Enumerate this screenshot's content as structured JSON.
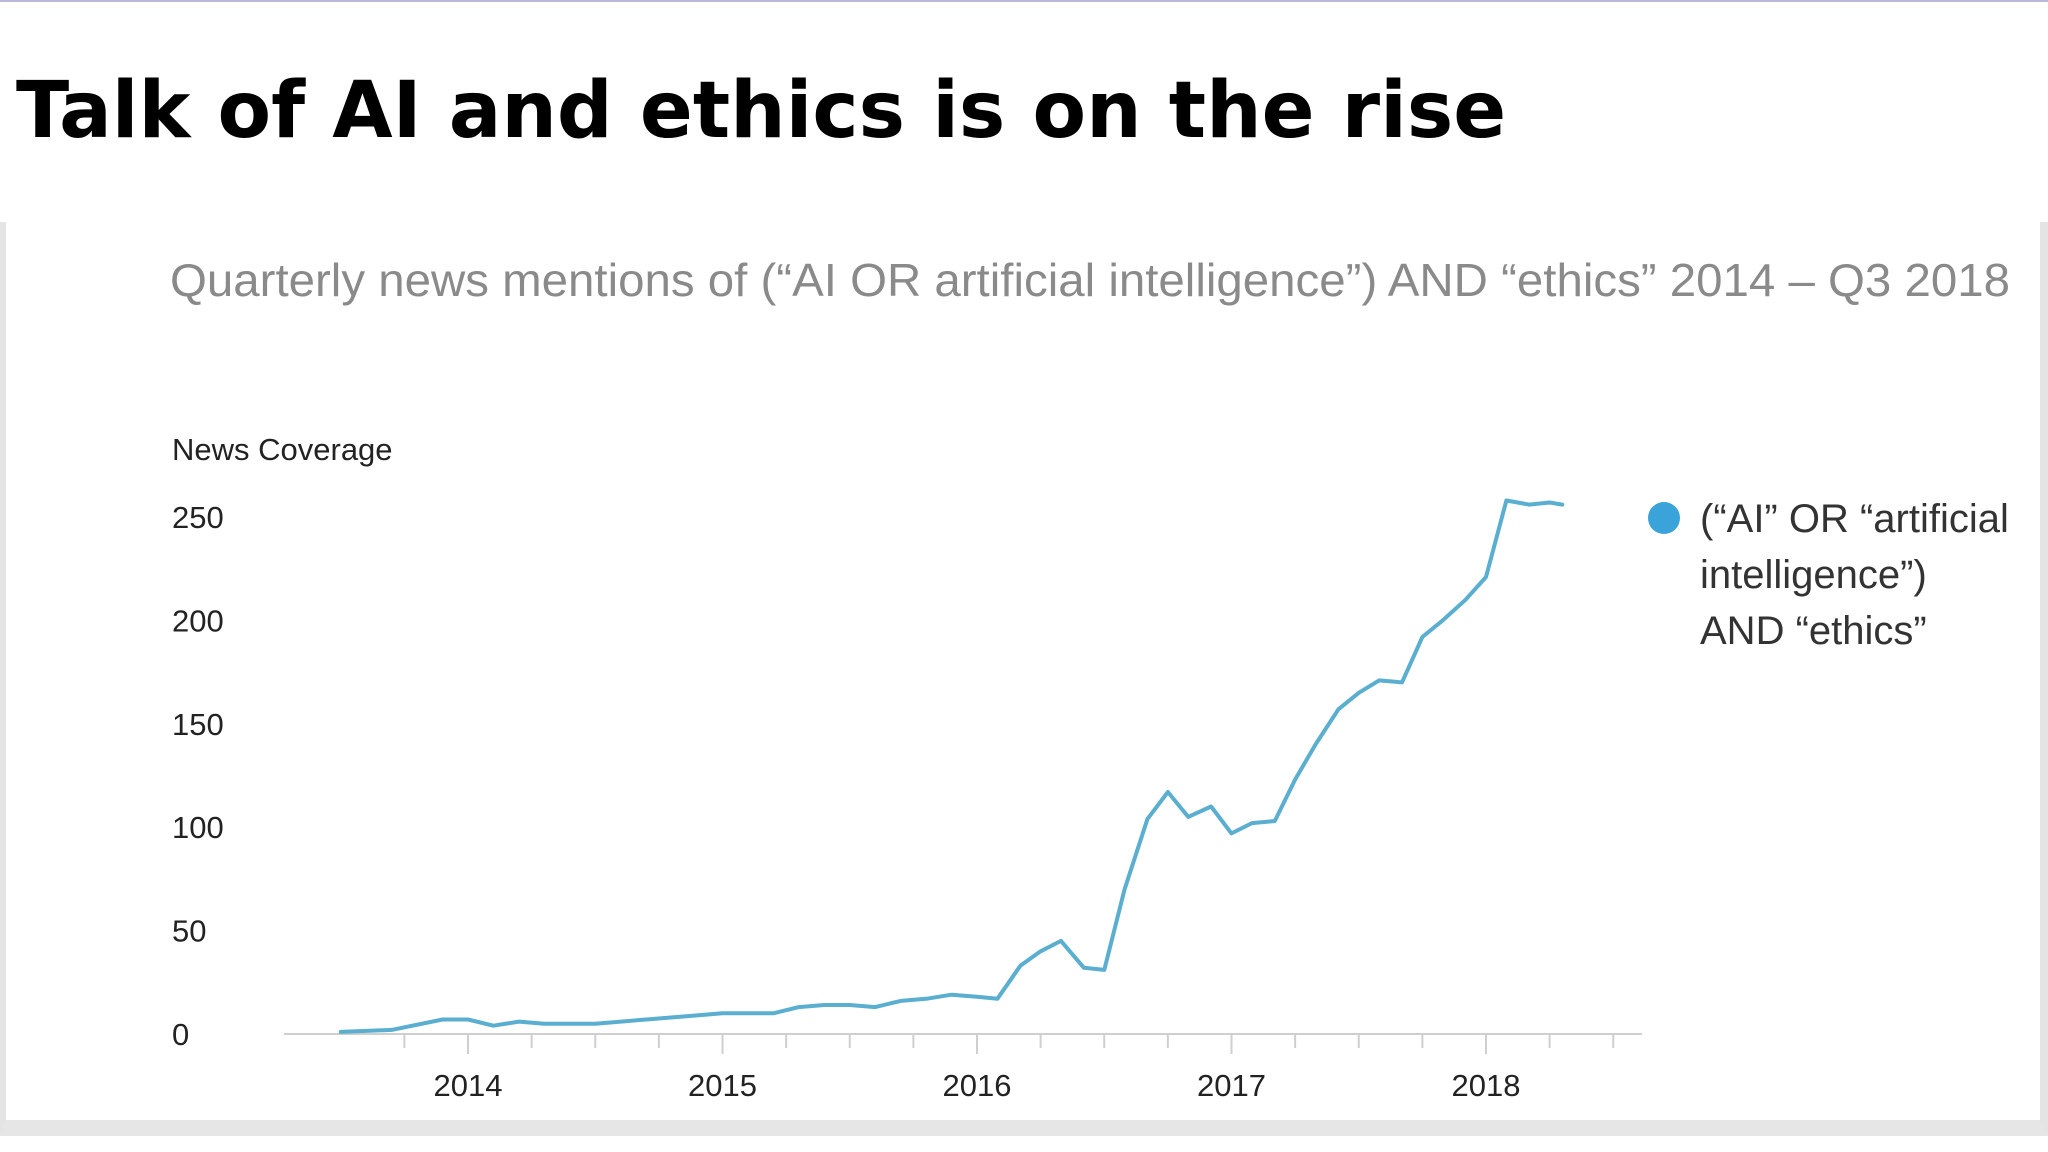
{
  "slide": {
    "title": "Talk of AI and ethics is on the rise"
  },
  "colors": {
    "series": "#5aaecf",
    "legend_dot": "#3aa3d9",
    "axis": "#cfcfcf",
    "subtitle": "#8a8a8a"
  },
  "chart_data": {
    "type": "line",
    "title": "Quarterly news mentions of (“AI OR artificial intelligence”) AND “ethics” 2014 – Q3 2018",
    "xlabel": "",
    "ylabel": "News Coverage",
    "ylim": [
      0,
      250
    ],
    "yticks": [
      "0",
      "50",
      "100",
      "150",
      "200",
      "250"
    ],
    "xticks": [
      "2014",
      "2015",
      "2016",
      "2017",
      "2018"
    ],
    "legend": {
      "position": "right",
      "lines": [
        "(“AI” OR “artificial",
        "intelligence”)",
        "AND “ethics”"
      ]
    },
    "series": [
      {
        "name": "(“AI” OR “artificial intelligence”) AND “ethics”",
        "x": [
          2013.5,
          2013.7,
          2013.9,
          2014.0,
          2014.1,
          2014.2,
          2014.3,
          2014.5,
          2014.7,
          2014.9,
          2015.0,
          2015.1,
          2015.2,
          2015.3,
          2015.4,
          2015.5,
          2015.6,
          2015.7,
          2015.8,
          2015.9,
          2016.0,
          2016.08,
          2016.17,
          2016.25,
          2016.33,
          2016.42,
          2016.5,
          2016.58,
          2016.67,
          2016.75,
          2016.83,
          2016.92,
          2017.0,
          2017.08,
          2017.17,
          2017.25,
          2017.33,
          2017.42,
          2017.5,
          2017.58,
          2017.67,
          2017.75,
          2017.83,
          2017.92,
          2018.0,
          2018.08,
          2018.17,
          2018.25,
          2018.3
        ],
        "values": [
          1,
          2,
          7,
          7,
          4,
          6,
          5,
          5,
          7,
          9,
          10,
          10,
          10,
          13,
          14,
          14,
          13,
          16,
          17,
          19,
          18,
          17,
          33,
          40,
          45,
          32,
          31,
          70,
          104,
          117,
          105,
          110,
          97,
          102,
          103,
          123,
          140,
          157,
          165,
          171,
          170,
          192,
          200,
          210,
          221,
          258,
          256,
          257,
          256
        ]
      }
    ]
  }
}
